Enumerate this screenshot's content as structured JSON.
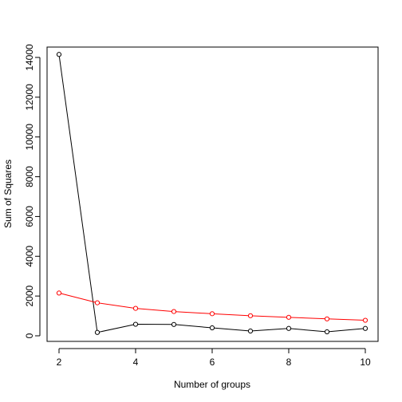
{
  "chart_data": {
    "type": "line",
    "xlabel": "Number of groups",
    "ylabel": "Sum of Squares",
    "xlim": [
      2,
      10
    ],
    "ylim": [
      0,
      14000
    ],
    "x_ticks": [
      "2",
      "4",
      "6",
      "8",
      "10"
    ],
    "y_ticks": [
      "0",
      "2000",
      "4000",
      "6000",
      "8000",
      "10000",
      "12000",
      "14000"
    ],
    "grid": false,
    "legend": "none",
    "x": [
      2,
      3,
      4,
      5,
      6,
      7,
      8,
      9,
      10
    ],
    "series": [
      {
        "color": "#000000",
        "values": [
          14150,
          170,
          580,
          570,
          400,
          240,
          370,
          200,
          370
        ]
      },
      {
        "color": "#ff0000",
        "values": [
          2150,
          1660,
          1380,
          1220,
          1110,
          1010,
          930,
          850,
          780
        ]
      }
    ]
  }
}
